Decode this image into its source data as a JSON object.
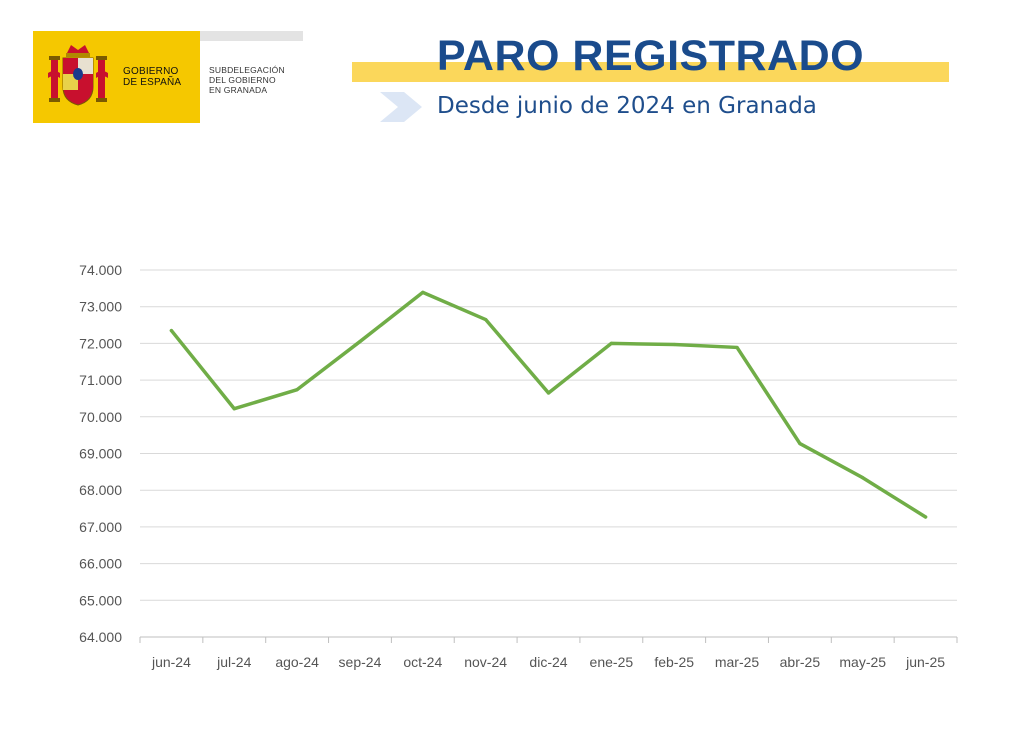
{
  "logo": {
    "gov_line1": "GOBIERNO",
    "gov_line2": "DE ESPAÑA",
    "sub_line1": "SUBDELEGACIÓN",
    "sub_line2": "DEL GOBIERNO",
    "sub_line3": "EN GRANADA",
    "colors": {
      "yellow": "#f5c800",
      "red": "#c8102e"
    }
  },
  "header": {
    "title": "PARO REGISTRADO",
    "subtitle": "Desde junio de 2024 en Granada",
    "title_color": "#1a4b8c",
    "band_color": "#fbd75b",
    "chevron_icon": "chevron-right-icon"
  },
  "chart_data": {
    "type": "line",
    "title": "",
    "xlabel": "",
    "ylabel": "",
    "categories": [
      "jun-24",
      "jul-24",
      "ago-24",
      "sep-24",
      "oct-24",
      "nov-24",
      "dic-24",
      "ene-25",
      "feb-25",
      "mar-25",
      "abr-25",
      "may-25",
      "jun-25"
    ],
    "series": [
      {
        "color": "#70ad47",
        "values": [
          72350,
          70220,
          70740,
          72050,
          73390,
          72650,
          70650,
          72000,
          71970,
          71890,
          69270,
          68340,
          67270
        ]
      }
    ],
    "ylim": [
      64000,
      74000
    ],
    "yticks": [
      64000,
      65000,
      66000,
      67000,
      68000,
      69000,
      70000,
      71000,
      72000,
      73000,
      74000
    ],
    "ytick_labels": [
      "64.000",
      "65.000",
      "66.000",
      "67.000",
      "68.000",
      "69.000",
      "70.000",
      "71.000",
      "72.000",
      "73.000",
      "74.000"
    ],
    "grid": true,
    "legend": "none"
  }
}
